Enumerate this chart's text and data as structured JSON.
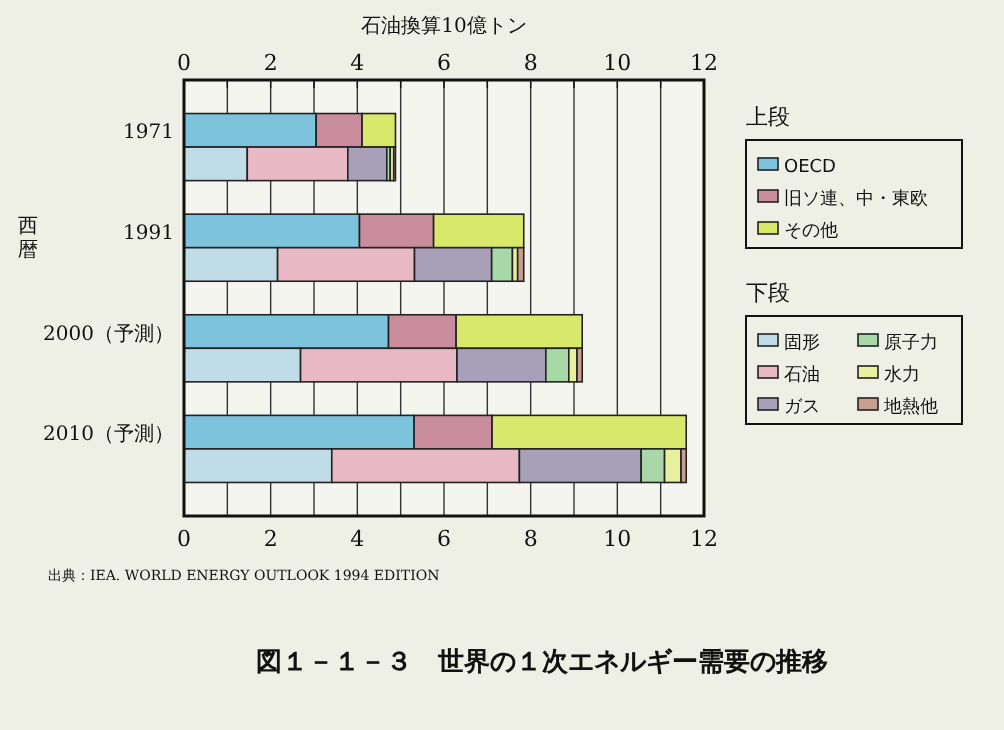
{
  "chart_data": {
    "type": "bar",
    "orientation": "horizontal",
    "stacked": true,
    "title": "図１－１－３　世界の１次エネルギー需要の推移",
    "x2label": "石油換算10億トン",
    "ylabel": "西暦",
    "annotations": [
      "出典：IEA. WORLD ENERGY OUTLOOK 1994 EDITION",
      "上段",
      "下段"
    ],
    "categories": [
      "1971",
      null,
      "1991",
      null,
      "2000（予測）",
      null,
      "2010（予測）",
      null
    ],
    "series": [
      {
        "name": "OECD",
        "color": "#7ec3dc",
        "values": [
          3.05,
          null,
          4.05,
          null,
          4.72,
          null,
          5.31,
          null
        ]
      },
      {
        "name": "旧ソ連、中・東欧",
        "color": "#c98c9c",
        "values": [
          1.06,
          null,
          1.71,
          null,
          1.56,
          null,
          1.8,
          null
        ]
      },
      {
        "name": "その他",
        "color": "#d8e86a",
        "values": [
          0.77,
          null,
          2.08,
          null,
          2.91,
          null,
          4.48,
          null
        ]
      },
      {
        "name": "固形",
        "color": "#c0dce6",
        "values": [
          null,
          1.46,
          null,
          2.16,
          null,
          2.69,
          null,
          3.41
        ]
      },
      {
        "name": "石油",
        "color": "#e8b8c4",
        "values": [
          null,
          2.32,
          null,
          3.16,
          null,
          3.61,
          null,
          4.33
        ]
      },
      {
        "name": "ガス",
        "color": "#a8a0b8",
        "values": [
          null,
          0.9,
          null,
          1.78,
          null,
          2.05,
          null,
          2.81
        ]
      },
      {
        "name": "原子力",
        "color": "#a8d8a8",
        "values": [
          null,
          0.08,
          null,
          0.48,
          null,
          0.53,
          null,
          0.54
        ]
      },
      {
        "name": "水力",
        "color": "#e8f0a0",
        "values": [
          null,
          0.08,
          null,
          0.12,
          null,
          0.19,
          null,
          0.38
        ]
      },
      {
        "name": "地熱他",
        "color": "#c8a090",
        "values": [
          null,
          0.04,
          null,
          0.14,
          null,
          0.12,
          null,
          0.12
        ]
      }
    ],
    "xlim": [
      0,
      12
    ],
    "x2lim": [
      0,
      12
    ],
    "xticks": [
      0,
      {
        "value": 1,
        "label": null
      },
      2,
      {
        "value": 3,
        "label": null
      },
      4,
      {
        "value": 5,
        "label": null
      },
      6,
      {
        "value": 7,
        "label": null
      },
      8,
      {
        "value": 9,
        "label": null
      },
      10,
      {
        "value": 11,
        "label": null
      },
      12
    ],
    "x2ticks": [
      0,
      {
        "value": 1,
        "label": null
      },
      2,
      {
        "value": 3,
        "label": null
      },
      4,
      {
        "value": 5,
        "label": null
      },
      6,
      {
        "value": 7,
        "label": null
      },
      8,
      {
        "value": 9,
        "label": null
      },
      10,
      {
        "value": 11,
        "label": null
      },
      12
    ],
    "grid": "x",
    "legend": "right"
  }
}
